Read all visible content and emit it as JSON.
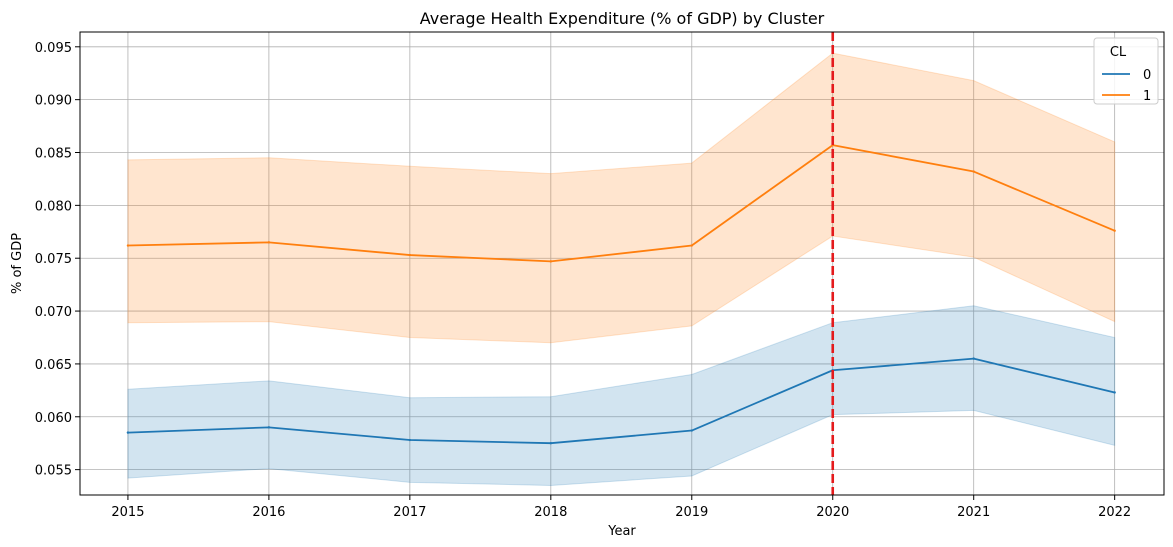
{
  "chart_data": {
    "type": "line",
    "title": "Average Health Expenditure (% of GDP) by Cluster",
    "xlabel": "Year",
    "ylabel": "% of GDP",
    "x": [
      2015,
      2016,
      2017,
      2018,
      2019,
      2020,
      2021,
      2022
    ],
    "x_ticks": [
      "2015",
      "2016",
      "2017",
      "2018",
      "2019",
      "2020",
      "2021",
      "2022"
    ],
    "y_ticks": [
      "0.055",
      "0.060",
      "0.065",
      "0.070",
      "0.075",
      "0.080",
      "0.085",
      "0.090",
      "0.095"
    ],
    "xlim": [
      2014.66,
      2022.35
    ],
    "ylim": [
      0.0526,
      0.0964
    ],
    "grid": true,
    "legend": {
      "title": "CL",
      "placement": "top-right"
    },
    "series": [
      {
        "name": "0",
        "color": "#1f77b4",
        "values": [
          0.0585,
          0.059,
          0.0578,
          0.0575,
          0.0587,
          0.0644,
          0.0655,
          0.0623
        ],
        "ci_lower": [
          0.0542,
          0.0551,
          0.0538,
          0.0535,
          0.0544,
          0.0602,
          0.0606,
          0.0573
        ],
        "ci_upper": [
          0.0626,
          0.0634,
          0.0618,
          0.0619,
          0.064,
          0.0689,
          0.0705,
          0.0675
        ]
      },
      {
        "name": "1",
        "color": "#ff7f0e",
        "values": [
          0.0762,
          0.0765,
          0.0753,
          0.0747,
          0.0762,
          0.0857,
          0.0832,
          0.0776
        ],
        "ci_lower": [
          0.0689,
          0.069,
          0.0675,
          0.067,
          0.0686,
          0.0771,
          0.0751,
          0.069
        ],
        "ci_upper": [
          0.0843,
          0.0845,
          0.0837,
          0.083,
          0.084,
          0.0944,
          0.0918,
          0.086
        ]
      }
    ],
    "annotations": [
      {
        "type": "vline",
        "x": 2020,
        "color": "#e41a1c",
        "style": "dashed"
      }
    ]
  }
}
